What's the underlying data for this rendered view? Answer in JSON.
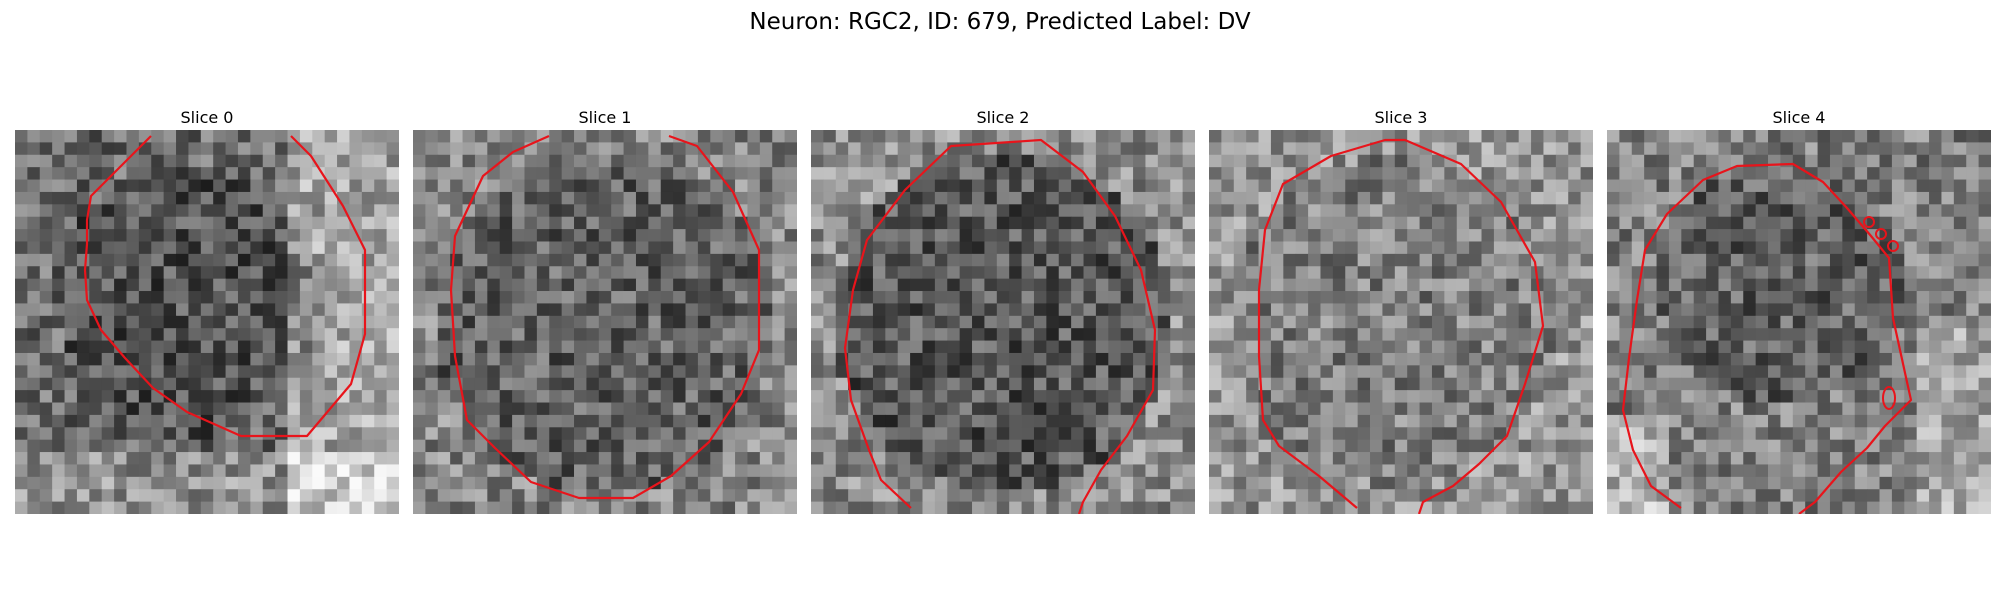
{
  "figure": {
    "title": "Neuron: RGC2, ID: 679, Predicted Label: DV"
  },
  "style": {
    "contour_color": "#e8141b",
    "colormap": "grayscale"
  },
  "panels": [
    {
      "title": "Slice 0"
    },
    {
      "title": "Slice 1"
    },
    {
      "title": "Slice 2"
    },
    {
      "title": "Slice 3"
    },
    {
      "title": "Slice 4"
    }
  ]
}
